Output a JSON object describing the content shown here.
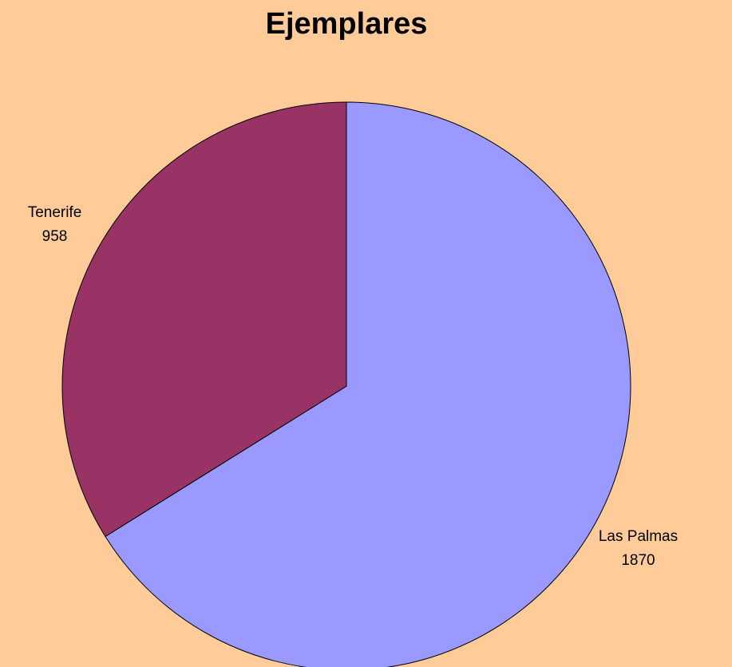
{
  "chart_data": {
    "type": "pie",
    "title": "Ejemplares",
    "categories": [
      "Las Palmas",
      "Tenerife"
    ],
    "values": [
      1870,
      958
    ],
    "colors": [
      "#9999ff",
      "#993366"
    ]
  }
}
